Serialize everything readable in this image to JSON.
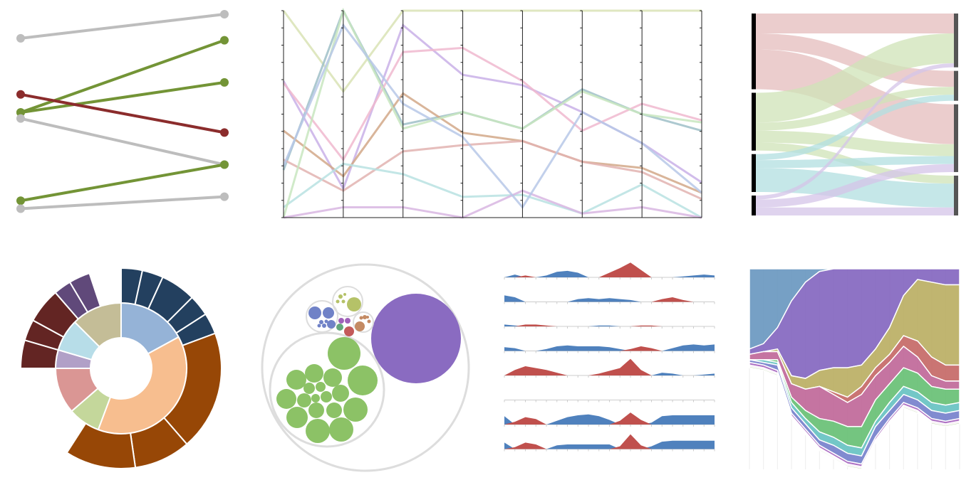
{
  "chart_data": [
    {
      "type": "slope",
      "panel": "slopegraph",
      "x": [
        0,
        1
      ],
      "colors": {
        "neutral": "#bdbdbd",
        "up": "#739436",
        "down": "#8b2c2c"
      },
      "series": [
        {
          "values": [
            88,
            100
          ],
          "trend": "neutral"
        },
        {
          "values": [
            51,
            87
          ],
          "trend": "up"
        },
        {
          "values": [
            51,
            66
          ],
          "trend": "up"
        },
        {
          "values": [
            60,
            41
          ],
          "trend": "down"
        },
        {
          "values": [
            48,
            25
          ],
          "trend": "neutral"
        },
        {
          "values": [
            7,
            25
          ],
          "trend": "up"
        },
        {
          "values": [
            3,
            9
          ],
          "trend": "neutral"
        }
      ]
    },
    {
      "type": "parallel-coordinates",
      "panel": "parallel",
      "dimensions": 8,
      "ylim": [
        0,
        100
      ],
      "lines": [
        {
          "color": "#d9e3b5",
          "values": [
            100,
            61,
            100,
            100,
            100,
            100,
            100,
            100
          ]
        },
        {
          "color": "#9fc0c8",
          "values": [
            23,
            100,
            45,
            51,
            43,
            62,
            50,
            42
          ]
        },
        {
          "color": "#c9b0e8",
          "values": [
            66,
            14,
            93,
            69,
            64,
            51,
            36,
            17
          ]
        },
        {
          "color": "#f0b8cf",
          "values": [
            65,
            28,
            80,
            82,
            66,
            42,
            55,
            47
          ]
        },
        {
          "color": "#d2a888",
          "values": [
            42,
            20,
            60,
            41,
            37,
            27,
            24,
            12
          ]
        },
        {
          "color": "#e2b3b0",
          "values": [
            28,
            13,
            32,
            35,
            37,
            27,
            22,
            9
          ]
        },
        {
          "color": "#b8e2e2",
          "values": [
            5,
            26,
            21,
            10,
            11,
            2,
            16,
            0
          ]
        },
        {
          "color": "#c8e6c0",
          "values": [
            0,
            100,
            43,
            51,
            43,
            61,
            50,
            46
          ]
        },
        {
          "color": "#d8b6e2",
          "values": [
            0,
            5,
            5,
            0,
            13,
            2,
            5,
            0
          ]
        },
        {
          "color": "#b7c8e8",
          "values": [
            25,
            93,
            55,
            39,
            5,
            51,
            36,
            12
          ]
        }
      ]
    },
    {
      "type": "sankey",
      "panel": "alluvial",
      "left_nodes": [
        {
          "color": "#000000",
          "value": 38
        },
        {
          "color": "#000000",
          "value": 29
        },
        {
          "color": "#000000",
          "value": 19
        },
        {
          "color": "#000000",
          "value": 10
        }
      ],
      "right_nodes": [
        {
          "color": "#555555",
          "value": 27
        },
        {
          "color": "#555555",
          "value": 15
        },
        {
          "color": "#555555",
          "value": 34
        },
        {
          "color": "#555555",
          "value": 20
        }
      ],
      "links": [
        {
          "source": 0,
          "target": 0,
          "value": 10,
          "color": "#e4bcbc"
        },
        {
          "source": 0,
          "target": 1,
          "value": 8,
          "color": "#e4bcbc"
        },
        {
          "source": 0,
          "target": 2,
          "value": 20,
          "color": "#e4bcbc"
        },
        {
          "source": 1,
          "target": 0,
          "value": 15,
          "color": "#cfe3b7"
        },
        {
          "source": 1,
          "target": 1,
          "value": 4,
          "color": "#cfe3b7"
        },
        {
          "source": 1,
          "target": 2,
          "value": 6,
          "color": "#cfe3b7"
        },
        {
          "source": 1,
          "target": 3,
          "value": 4,
          "color": "#cfe3b7"
        },
        {
          "source": 2,
          "target": 1,
          "value": 3,
          "color": "#b2dfe0"
        },
        {
          "source": 2,
          "target": 2,
          "value": 4,
          "color": "#b2dfe0"
        },
        {
          "source": 2,
          "target": 3,
          "value": 12,
          "color": "#b2dfe0"
        },
        {
          "source": 3,
          "target": 0,
          "value": 2,
          "color": "#d4c4e8"
        },
        {
          "source": 3,
          "target": 2,
          "value": 4,
          "color": "#d4c4e8"
        },
        {
          "source": 3,
          "target": 3,
          "value": 4,
          "color": "#d4c4e8"
        }
      ]
    },
    {
      "type": "sunburst",
      "panel": "sunburst",
      "inner": [
        {
          "value": 15,
          "color": "#95b3d7"
        },
        {
          "value": 34,
          "color": "#f7be8f"
        },
        {
          "value": 7,
          "color": "#c4d79b"
        },
        {
          "value": 10,
          "color": "#da9694"
        },
        {
          "value": 4,
          "color": "#b1a0c7"
        },
        {
          "value": 7,
          "color": "#b7dde8"
        },
        {
          "value": 11,
          "color": "#c4bd97"
        }
      ],
      "outer": [
        {
          "start": 0,
          "value": 3,
          "color": "#23405f"
        },
        {
          "start": 3,
          "value": 3,
          "color": "#23405f"
        },
        {
          "start": 6,
          "value": 5,
          "color": "#23405f"
        },
        {
          "start": 11,
          "value": 3,
          "color": "#23405f"
        },
        {
          "start": 14,
          "value": 3,
          "color": "#23405f"
        },
        {
          "start": 17,
          "value": 17,
          "color": "#974706"
        },
        {
          "start": 34,
          "value": 8,
          "color": "#974706"
        },
        {
          "start": 42,
          "value": 10,
          "color": "#974706"
        },
        {
          "start": 66,
          "value": 4,
          "color": "#632523"
        },
        {
          "start": 70,
          "value": 3,
          "color": "#632523"
        },
        {
          "start": 73,
          "value": 5,
          "color": "#632523"
        },
        {
          "start": 78,
          "value": 2.5,
          "color": "#60497a"
        },
        {
          "start": 80.5,
          "value": 3,
          "color": "#60497a"
        }
      ]
    },
    {
      "type": "circle-packing",
      "panel": "packing",
      "groups": [
        {
          "color": "#8a6bc1",
          "leaf_size": [
            100
          ]
        },
        {
          "color": "#8cc266",
          "leaf_size": [
            14,
            12,
            10,
            10,
            9,
            8,
            8,
            8,
            7,
            7,
            6,
            6,
            5,
            5,
            4,
            4,
            3
          ]
        },
        {
          "color": "#7082c7",
          "leaf_size": [
            5,
            4,
            3,
            1,
            1,
            1,
            1
          ]
        },
        {
          "color": "#b5c268",
          "leaf_size": [
            4,
            1,
            1,
            1
          ]
        },
        {
          "color": "#c48a63",
          "leaf_size": [
            3,
            1,
            1,
            1
          ]
        },
        {
          "color": "#c35a5a",
          "leaf_size": [
            2
          ]
        },
        {
          "color": "#a060b9",
          "leaf_size": [
            1,
            1
          ]
        },
        {
          "color": "#64a67b",
          "leaf_size": [
            1
          ]
        }
      ]
    },
    {
      "type": "horizon",
      "panel": "horizon",
      "colors": {
        "positive": "#c0504d",
        "negative": "#4f81bd"
      },
      "x": [
        0,
        1,
        2,
        3,
        4,
        5,
        6,
        7,
        8,
        9,
        10,
        11,
        12,
        13,
        14,
        15,
        16,
        17,
        18,
        19,
        20
      ],
      "rows": [
        [
          0,
          -0.3,
          0.2,
          0,
          -0.2,
          -0.6,
          -0.7,
          -0.5,
          0,
          0,
          0.5,
          1,
          1.6,
          0.8,
          0,
          0,
          0,
          -0.1,
          -0.2,
          -0.3,
          -0.2
        ],
        [
          -0.7,
          -0.5,
          0,
          0,
          0,
          0,
          0,
          -0.3,
          -0.4,
          -0.3,
          -0.4,
          -0.3,
          -0.2,
          0,
          0,
          0.3,
          0.5,
          0.2,
          0,
          0,
          0
        ],
        [
          -0.2,
          -0.1,
          0.2,
          0.2,
          0.1,
          0,
          0,
          0,
          0,
          -0.1,
          -0.1,
          0,
          0,
          0.1,
          0.1,
          0,
          0,
          0,
          0,
          0,
          0
        ],
        [
          -0.4,
          -0.3,
          0,
          0,
          -0.2,
          -0.5,
          -0.6,
          -0.5,
          -0.5,
          -0.5,
          -0.4,
          -0.2,
          0.2,
          0.5,
          0.3,
          0,
          -0.3,
          -0.6,
          -0.7,
          -0.6,
          -0.7
        ],
        [
          0,
          0.6,
          1,
          0.8,
          0.6,
          0.3,
          0,
          0,
          0,
          0.2,
          0.5,
          0.8,
          1.8,
          0.6,
          0,
          -0.3,
          -0.2,
          0,
          0,
          -0.1,
          -0.2
        ],
        [
          0,
          0,
          0,
          0,
          0,
          0,
          0,
          0,
          0,
          0,
          0,
          0,
          0,
          0,
          0,
          0,
          0,
          0,
          0,
          0,
          0
        ],
        [
          -0.9,
          0.3,
          0.8,
          0.6,
          0,
          -0.4,
          -0.8,
          -1,
          -1.1,
          -0.9,
          -0.5,
          0.4,
          1.3,
          0.5,
          -0.2,
          -0.9,
          -1,
          -1,
          -1,
          -1,
          -1
        ],
        [
          -0.7,
          0.2,
          0.7,
          0.5,
          0,
          -0.4,
          -0.5,
          -0.5,
          -0.5,
          -0.5,
          -0.5,
          0.3,
          1.6,
          0.4,
          -0.3,
          -0.8,
          -0.9,
          -0.9,
          -0.9,
          -0.9,
          -0.9
        ]
      ]
    },
    {
      "type": "streamgraph",
      "panel": "stream",
      "x": [
        0,
        1,
        2,
        3,
        4,
        5,
        6,
        7,
        8,
        9,
        10,
        11,
        12,
        13,
        14,
        15
      ],
      "series": [
        {
          "color": "#5e8fbb",
          "values": [
            30,
            28,
            22,
            12,
            5,
            1,
            0,
            0,
            0,
            0,
            0,
            0,
            0,
            0,
            0,
            0
          ]
        },
        {
          "color": "#7a5bbb",
          "values": [
            2,
            3,
            8,
            28,
            36,
            37,
            37,
            37,
            36,
            30,
            22,
            10,
            4,
            5,
            6,
            6
          ]
        },
        {
          "color": "#b5a857",
          "values": [
            0,
            0,
            1,
            3,
            4,
            6,
            9,
            11,
            8,
            7,
            10,
            15,
            23,
            28,
            30,
            30
          ]
        },
        {
          "color": "#c15d5a",
          "values": [
            0,
            0,
            0,
            0,
            0,
            0,
            1,
            2,
            3,
            3,
            3,
            4,
            6,
            7,
            6,
            6
          ]
        },
        {
          "color": "#bb5c91",
          "values": [
            2,
            3,
            3,
            5,
            8,
            12,
            10,
            9,
            12,
            9,
            8,
            8,
            6,
            4,
            3,
            3
          ]
        },
        {
          "color": "#5cbb6a",
          "values": [
            0,
            0,
            1,
            2,
            3,
            5,
            6,
            7,
            8,
            8,
            7,
            7,
            7,
            6,
            6,
            5
          ]
        },
        {
          "color": "#5bbdbd",
          "values": [
            0,
            1,
            1,
            2,
            2,
            3,
            3,
            3,
            3,
            2,
            3,
            3,
            3,
            3,
            3,
            3
          ]
        },
        {
          "color": "#6b77c8",
          "values": [
            1,
            1,
            2,
            2,
            2,
            2,
            3,
            3,
            3,
            4,
            3,
            3,
            3,
            3,
            3,
            3
          ]
        },
        {
          "color": "#a15bbb",
          "values": [
            1,
            1,
            1,
            1,
            1,
            1,
            1,
            1,
            1,
            1,
            1,
            1,
            1,
            1,
            1,
            1
          ]
        },
        {
          "color": "#e0a0d0",
          "values": [
            0.5,
            0.5,
            0.5,
            0.5,
            0.5,
            0.5,
            0.5,
            0.5,
            0.5,
            0.5,
            0.5,
            0.5,
            0.5,
            0.5,
            0.5,
            0.5
          ]
        },
        {
          "color": "#9bbf7a",
          "values": [
            0.5,
            0.5,
            0.5,
            0.5,
            0.5,
            0.5,
            0.5,
            0.5,
            0.5,
            0.5,
            0.5,
            0.5,
            0.5,
            0.5,
            0.5,
            0.5
          ]
        }
      ]
    }
  ]
}
